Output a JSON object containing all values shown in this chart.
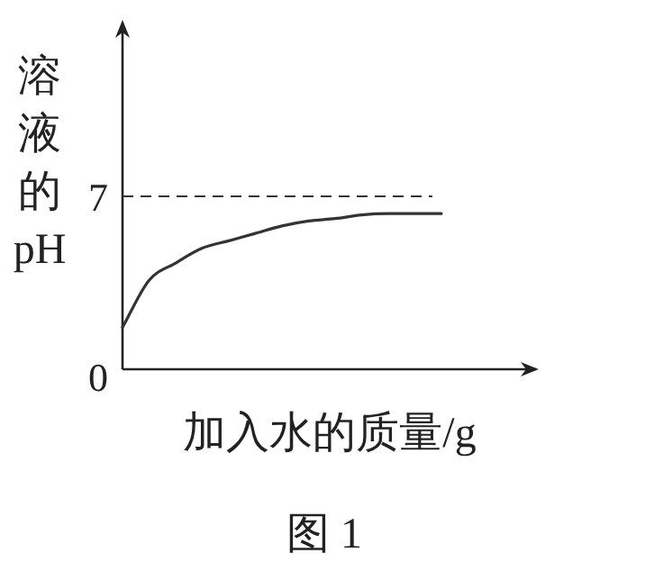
{
  "chart_data": {
    "type": "line",
    "ylabel": "溶液的pH",
    "xlabel": "加入水的质量/g",
    "annotations": [
      "图 1"
    ],
    "categories": [
      null,
      null,
      null,
      null,
      null,
      null,
      null,
      null,
      null,
      null,
      null,
      null,
      null
    ],
    "series": [
      {
        "color": "#333333",
        "values": [
          1.7,
          3.6,
          4.3,
          4.9,
          5.2,
          5.5,
          5.8,
          6.0,
          6.1,
          6.25,
          6.3,
          6.3,
          6.3
        ]
      }
    ],
    "ylim": [
      0,
      14
    ],
    "yticks": [
      0,
      7
    ],
    "ref_lines": [
      {
        "axis": "y",
        "value": 7,
        "line_style": "dashed"
      }
    ],
    "grid": false,
    "marker": "none",
    "line_style": "solid"
  }
}
